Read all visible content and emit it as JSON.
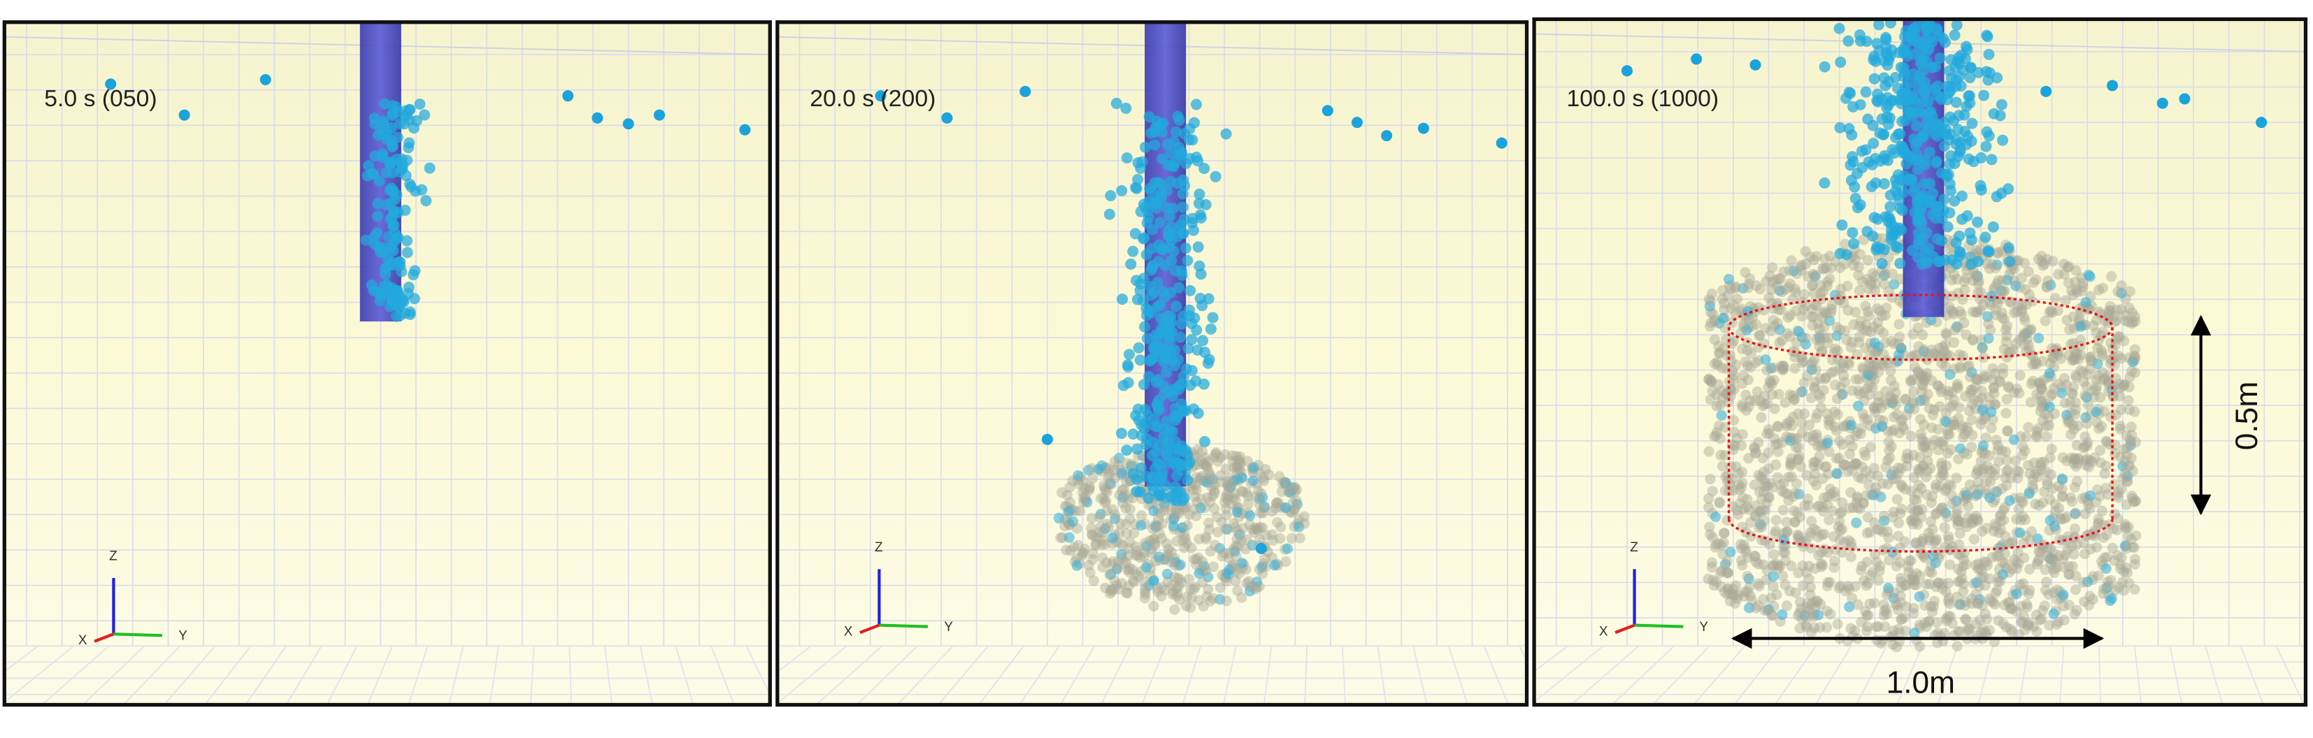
{
  "panels": [
    {
      "time_label": "5.0 s (050)",
      "axes": {
        "x": "X",
        "y": "Y",
        "z": "Z"
      }
    },
    {
      "time_label": "20.0 s (200)",
      "axes": {
        "x": "X",
        "y": "Y",
        "z": "Z"
      }
    },
    {
      "time_label": "100.0 s (1000)",
      "axes": {
        "x": "X",
        "y": "Y",
        "z": "Z"
      }
    }
  ],
  "dimensions": {
    "height": "0.5m",
    "width": "1.0m"
  }
}
